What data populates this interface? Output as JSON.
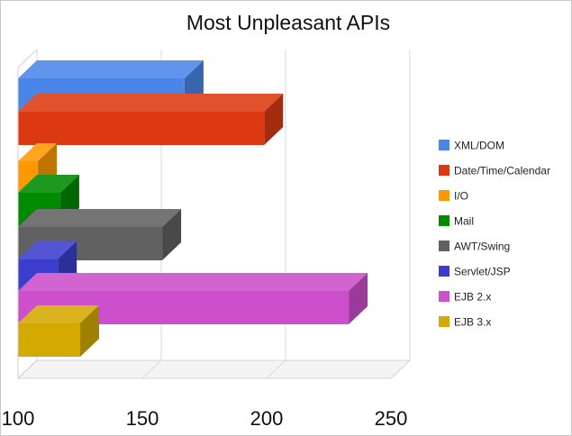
{
  "chart_data": {
    "type": "bar",
    "orientation": "horizontal",
    "style": "3d",
    "title": "Most Unpleasant APIs",
    "categories": [
      "XML/DOM",
      "Date/Time/Calendar",
      "I/O",
      "Mail",
      "AWT/Swing",
      "Servlet/JSP",
      "EJB 2.x",
      "EJB 3.x"
    ],
    "values": [
      167,
      199,
      108,
      117,
      158,
      116,
      233,
      125
    ],
    "colors": [
      "#4a86e8",
      "#dc3912",
      "#ff9900",
      "#008a00",
      "#616161",
      "#3b3ecc",
      "#cc4fcc",
      "#d4aa00"
    ],
    "xlim": [
      100,
      250
    ],
    "xticks": [
      "100",
      "150",
      "200",
      "250"
    ],
    "grid": true,
    "legend_position": "right"
  }
}
